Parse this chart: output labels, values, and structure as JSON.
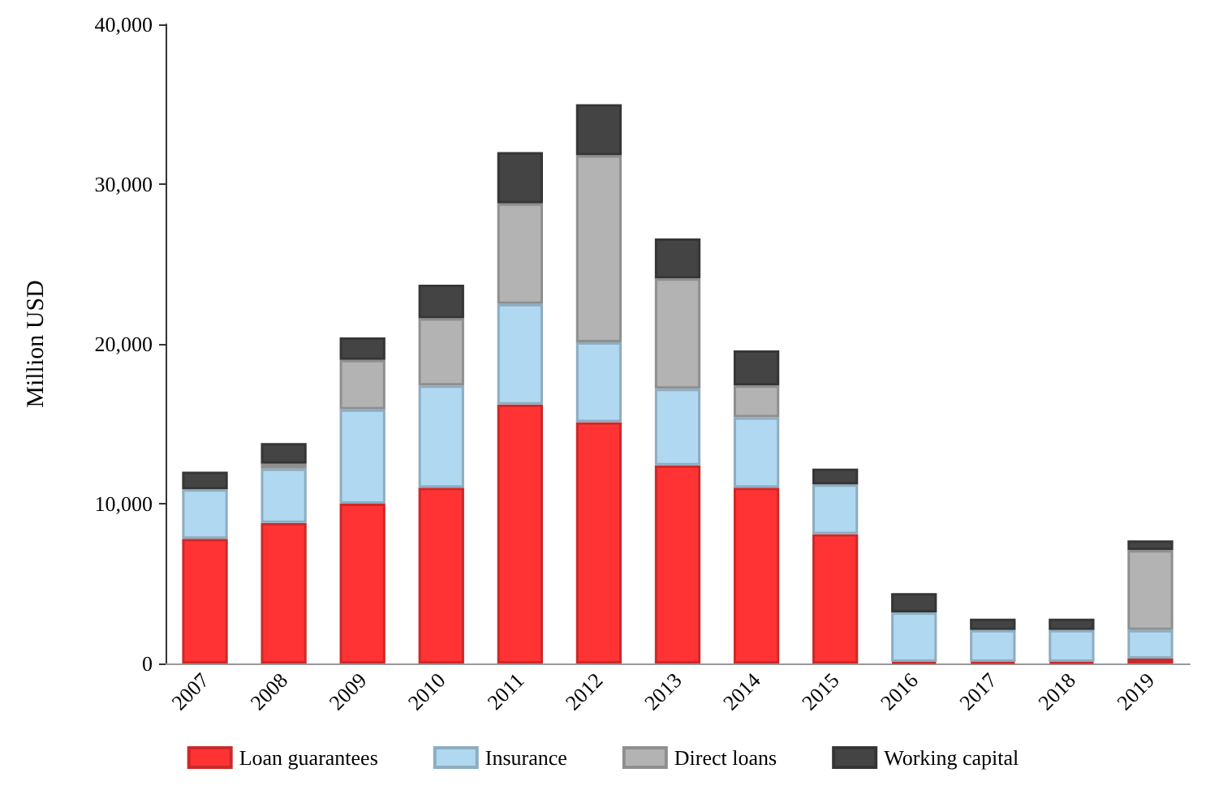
{
  "chart_data": {
    "type": "bar",
    "stacked": true,
    "ylabel": "Million USD",
    "categories": [
      "2007",
      "2008",
      "2009",
      "2010",
      "2011",
      "2012",
      "2013",
      "2014",
      "2015",
      "2016",
      "2017",
      "2018",
      "2019"
    ],
    "series": [
      {
        "name": "Loan guarantees",
        "color": "#ff3333",
        "values": [
          7800,
          8800,
          10000,
          11000,
          16200,
          15100,
          12400,
          11000,
          8100,
          100,
          100,
          100,
          300
        ]
      },
      {
        "name": "Insurance",
        "color": "#b0d8f0",
        "values": [
          3100,
          3400,
          5900,
          6400,
          6300,
          5000,
          4800,
          4400,
          3100,
          3100,
          2000,
          2000,
          1800
        ]
      },
      {
        "name": "Direct loans",
        "color": "#b3b3b3",
        "values": [
          null,
          300,
          3100,
          4200,
          6300,
          11700,
          6900,
          2000,
          null,
          null,
          null,
          null,
          5000
        ]
      },
      {
        "name": "Working capital",
        "color": "#444444",
        "values": [
          1100,
          1300,
          1400,
          2100,
          3200,
          3200,
          2500,
          2200,
          1000,
          1200,
          700,
          700,
          600
        ]
      }
    ],
    "ylim": [
      0,
      40000
    ],
    "yticks": [
      0,
      {
        "value": 10000,
        "label": "10,000"
      },
      {
        "value": 20000,
        "label": "20,000"
      },
      {
        "value": 30000,
        "label": "30,000"
      },
      {
        "value": 40000,
        "label": "40,000"
      }
    ],
    "grid": false,
    "legend": "bottom"
  }
}
